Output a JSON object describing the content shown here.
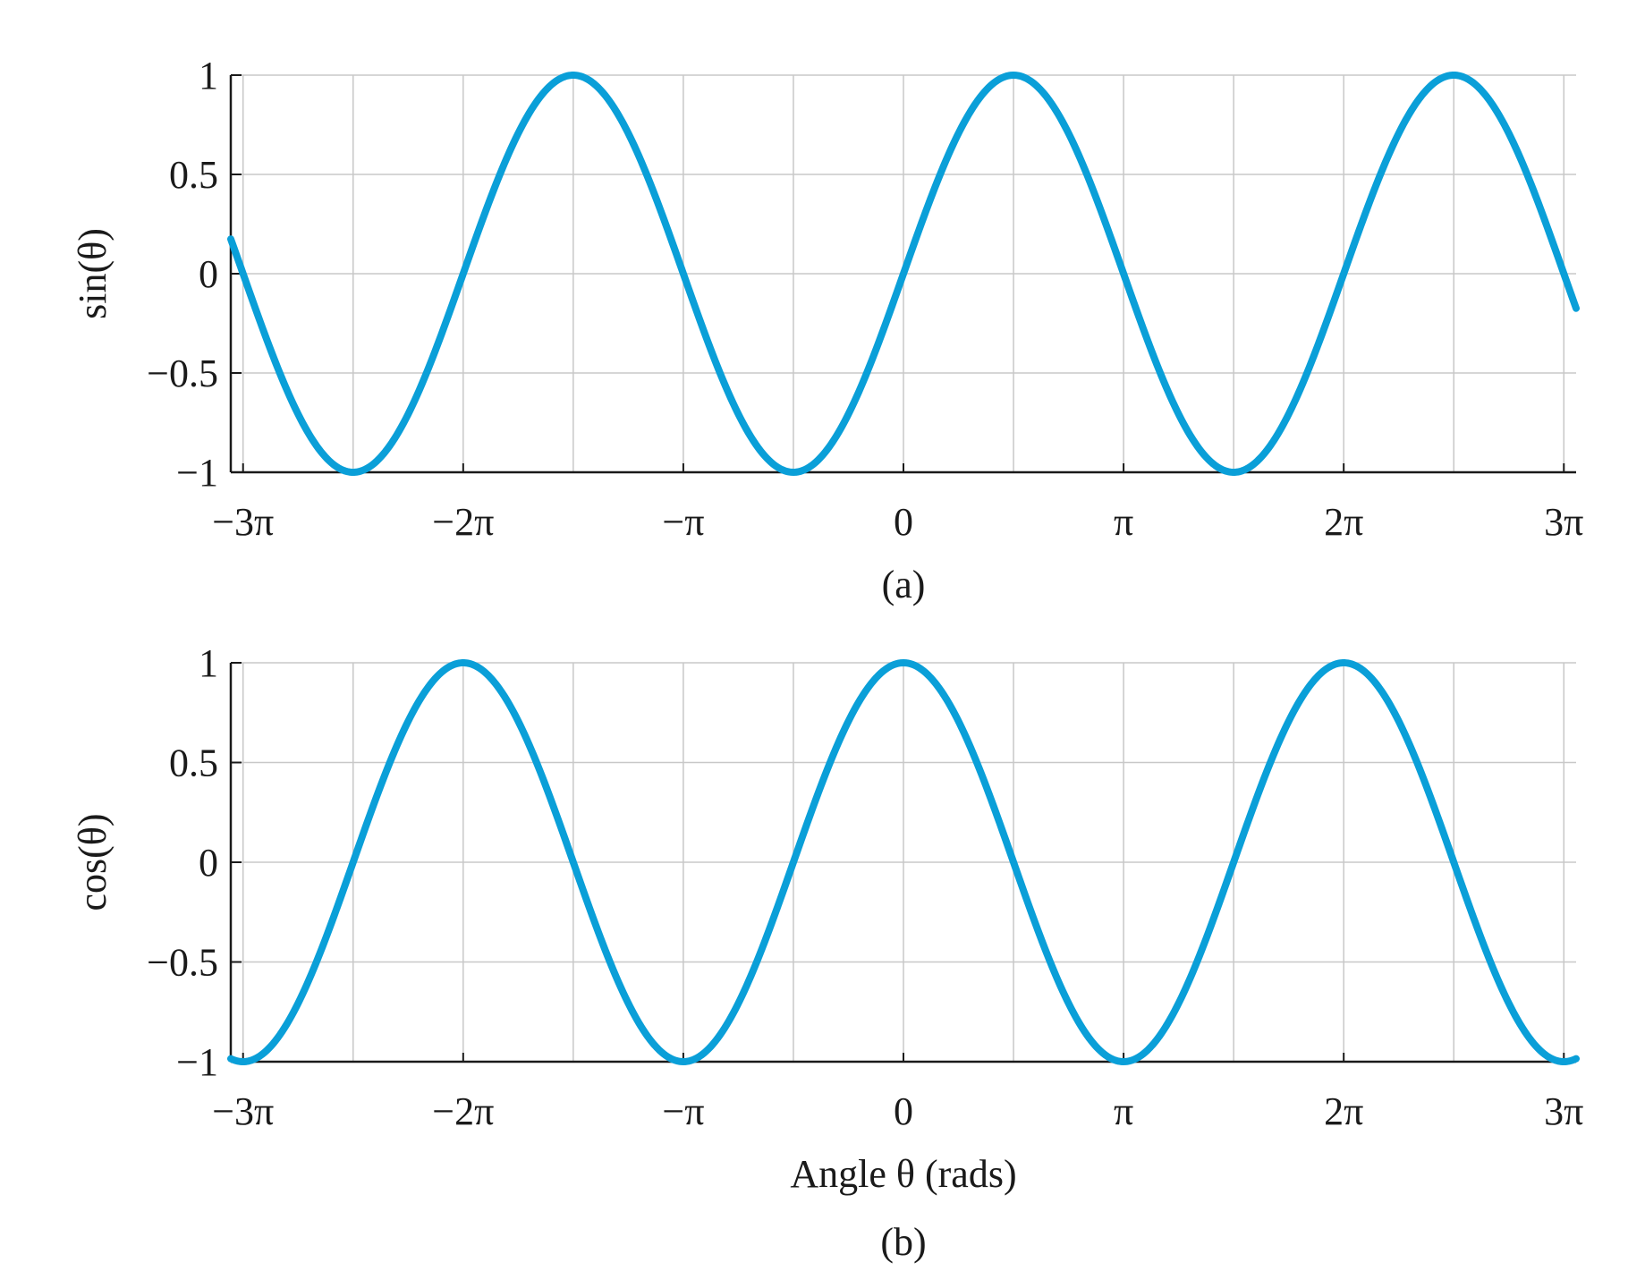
{
  "chart_data": [
    {
      "type": "line",
      "function": "sin",
      "ylabel": "sin(θ)",
      "xlabel": "",
      "caption": "(a)",
      "xlim": [
        -9.6,
        9.6
      ],
      "ylim": [
        -1,
        1
      ],
      "x_ticks": [
        {
          "value": -9.42478,
          "label": "−3π"
        },
        {
          "value": -6.28319,
          "label": "−2π"
        },
        {
          "value": -3.14159,
          "label": "−π"
        },
        {
          "value": 0,
          "label": "0"
        },
        {
          "value": 3.14159,
          "label": "π"
        },
        {
          "value": 6.28319,
          "label": "2π"
        },
        {
          "value": 9.42478,
          "label": "3π"
        }
      ],
      "y_ticks": [
        {
          "value": 1,
          "label": "1"
        },
        {
          "value": 0.5,
          "label": "0.5"
        },
        {
          "value": 0,
          "label": "0"
        },
        {
          "value": -0.5,
          "label": "−0.5"
        },
        {
          "value": -1,
          "label": "−1"
        }
      ],
      "grid": true,
      "series": [
        {
          "color": "#0a9fd8",
          "x": [
            -9.6,
            -9.0,
            -8.4,
            -7.8,
            -7.2,
            -6.6,
            -6.0,
            -5.4,
            -4.8,
            -4.2,
            -3.6,
            -3.0,
            -2.4,
            -1.8,
            -1.2,
            -0.6,
            0.0,
            0.6,
            1.2,
            1.8,
            2.4,
            3.0,
            3.6,
            4.2,
            4.8,
            5.4,
            6.0,
            6.6,
            7.2,
            7.8,
            8.4,
            9.0,
            9.6
          ],
          "y": [
            0.17,
            -0.41,
            -0.85,
            -1.0,
            -0.79,
            -0.31,
            0.28,
            0.77,
            1.0,
            0.87,
            0.44,
            -0.14,
            -0.68,
            -0.97,
            -0.93,
            -0.56,
            0.0,
            0.56,
            0.93,
            0.97,
            0.68,
            0.14,
            -0.44,
            -0.87,
            -1.0,
            -0.77,
            -0.28,
            0.31,
            0.79,
            1.0,
            0.85,
            0.41,
            -0.17
          ]
        }
      ]
    },
    {
      "type": "line",
      "function": "cos",
      "ylabel": "cos(θ)",
      "xlabel": "Angle θ (rads)",
      "caption": "(b)",
      "xlim": [
        -9.6,
        9.6
      ],
      "ylim": [
        -1,
        1
      ],
      "x_ticks": [
        {
          "value": -9.42478,
          "label": "−3π"
        },
        {
          "value": -6.28319,
          "label": "−2π"
        },
        {
          "value": -3.14159,
          "label": "−π"
        },
        {
          "value": 0,
          "label": "0"
        },
        {
          "value": 3.14159,
          "label": "π"
        },
        {
          "value": 6.28319,
          "label": "2π"
        },
        {
          "value": 9.42478,
          "label": "3π"
        }
      ],
      "y_ticks": [
        {
          "value": 1,
          "label": "1"
        },
        {
          "value": 0.5,
          "label": "0.5"
        },
        {
          "value": 0,
          "label": "0"
        },
        {
          "value": -0.5,
          "label": "−0.5"
        },
        {
          "value": -1,
          "label": "−1"
        }
      ],
      "grid": true,
      "series": [
        {
          "color": "#0a9fd8",
          "x": [
            -9.6,
            -9.0,
            -8.4,
            -7.8,
            -7.2,
            -6.6,
            -6.0,
            -5.4,
            -4.8,
            -4.2,
            -3.6,
            -3.0,
            -2.4,
            -1.8,
            -1.2,
            -0.6,
            0.0,
            0.6,
            1.2,
            1.8,
            2.4,
            3.0,
            3.6,
            4.2,
            4.8,
            5.4,
            6.0,
            6.6,
            7.2,
            7.8,
            8.4,
            9.0,
            9.6
          ],
          "y": [
            -0.98,
            -0.91,
            -0.52,
            0.05,
            0.61,
            0.95,
            0.96,
            0.63,
            0.09,
            -0.49,
            -0.9,
            -0.99,
            -0.74,
            -0.23,
            0.36,
            0.83,
            1.0,
            0.83,
            0.36,
            -0.23,
            -0.74,
            -0.99,
            -0.9,
            -0.49,
            0.09,
            0.63,
            0.96,
            0.95,
            0.61,
            0.05,
            -0.52,
            -0.91,
            -0.98
          ]
        }
      ]
    }
  ]
}
